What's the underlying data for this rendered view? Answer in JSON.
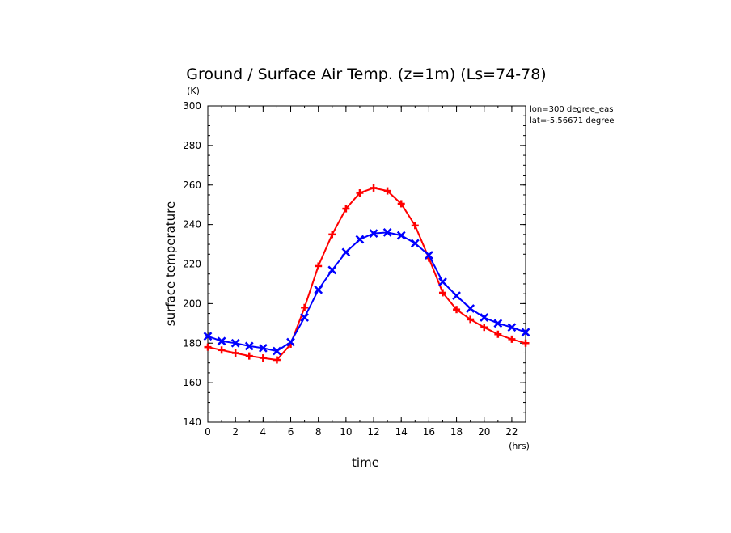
{
  "chart_data": {
    "type": "line",
    "title": "Ground / Surface Air Temp. (z=1m) (Ls=74-78)",
    "xlabel": "time",
    "ylabel": "surface temperature",
    "x_unit": "(hrs)",
    "y_unit": "(K)",
    "xlim": [
      0,
      23
    ],
    "ylim": [
      140,
      300
    ],
    "x_ticks": [
      0,
      2,
      4,
      6,
      8,
      10,
      12,
      14,
      16,
      18,
      20,
      22
    ],
    "y_ticks": [
      140,
      160,
      180,
      200,
      220,
      240,
      260,
      280,
      300
    ],
    "annotations": [
      "lon=300 degree_eas",
      "lat=-5.56671 degree"
    ],
    "x": [
      0,
      1,
      2,
      3,
      4,
      5,
      6,
      7,
      8,
      9,
      10,
      11,
      12,
      13,
      14,
      15,
      16,
      17,
      18,
      19,
      20,
      21,
      22,
      23
    ],
    "series": [
      {
        "color": "#ff0000",
        "marker": "plus",
        "values": [
          178,
          176.5,
          175,
          173.5,
          172.5,
          171.5,
          179.5,
          198,
          219,
          235,
          248,
          256,
          258.5,
          257,
          250.5,
          239.5,
          223,
          205.5,
          197,
          192,
          188,
          184.5,
          182,
          180
        ]
      },
      {
        "color": "#0000ff",
        "marker": "x",
        "values": [
          183.5,
          181,
          180,
          178.5,
          177.5,
          176,
          180.5,
          193,
          207,
          217,
          226,
          232.5,
          235.5,
          236,
          234.5,
          230.5,
          224.5,
          211,
          204,
          197.5,
          193,
          190,
          188,
          185.5
        ]
      }
    ]
  }
}
